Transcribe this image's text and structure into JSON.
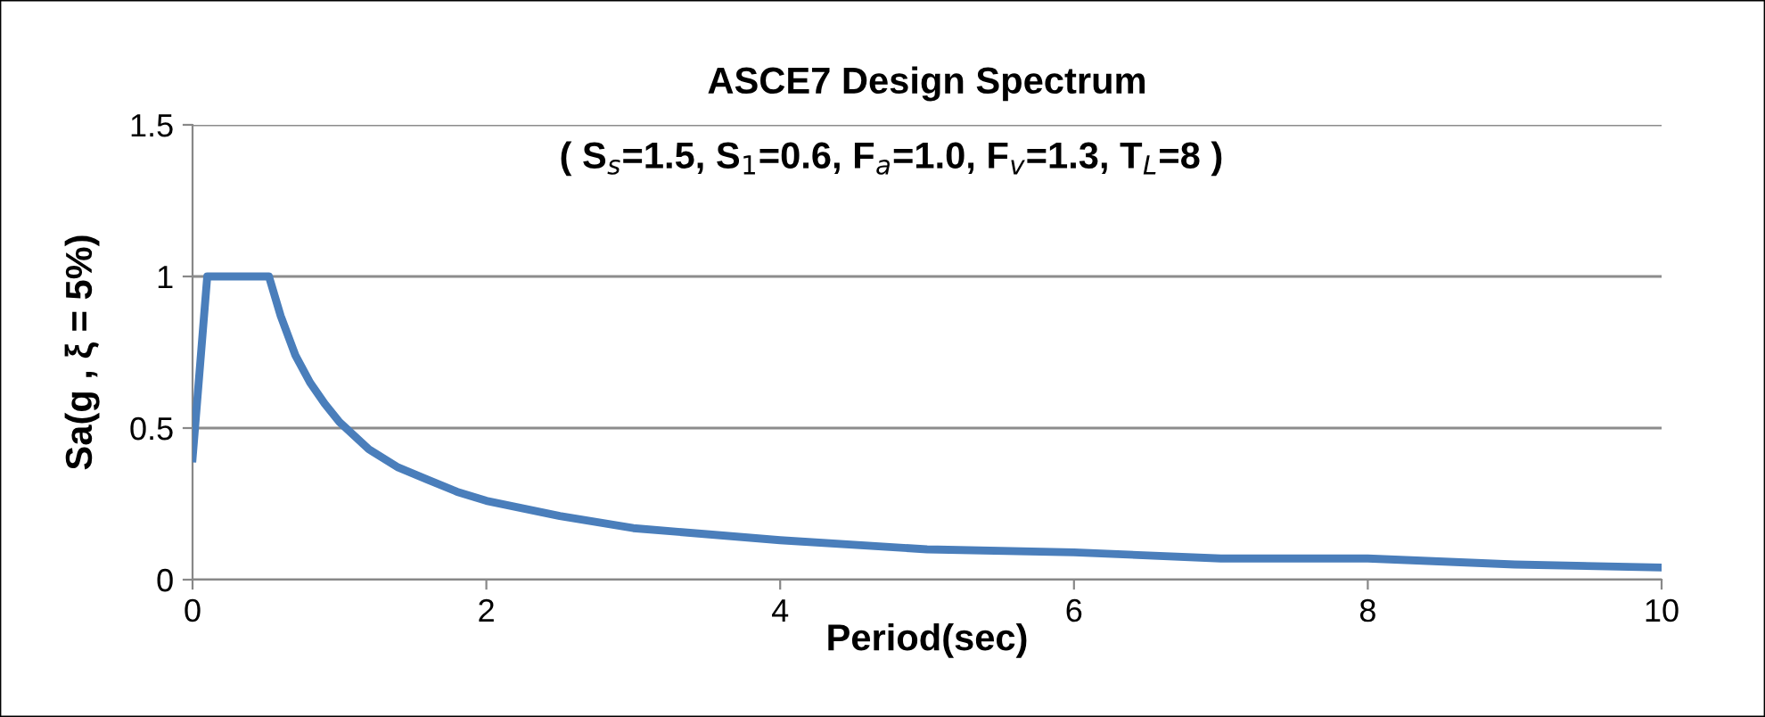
{
  "chart_data": {
    "type": "line",
    "title": "ASCE7 Design Spectrum",
    "subtitle": "( S$_{s}$=1.5, S$_{1}$=0.6, F$_{a}$=1.0, F$_{v}$=1.3, T$_{L}$=8 )",
    "xlabel": "Period(sec)",
    "ylabel": "Sa(g , ξ = 5%)",
    "series": [
      {
        "color": "#4a7ebb",
        "x": [
          0,
          0.1,
          0.52,
          0.6,
          0.7,
          0.8,
          0.9,
          1.0,
          1.2,
          1.4,
          1.6,
          1.8,
          2,
          2.5,
          3,
          3.5,
          4,
          5,
          6,
          7,
          8,
          9,
          10
        ],
        "values": [
          0.4,
          1.0,
          1.0,
          0.87,
          0.74,
          0.65,
          0.58,
          0.52,
          0.43,
          0.37,
          0.33,
          0.29,
          0.26,
          0.21,
          0.17,
          0.15,
          0.13,
          0.1,
          0.09,
          0.07,
          0.07,
          0.05,
          0.04
        ]
      }
    ],
    "xlim": [
      0,
      10
    ],
    "xticks": [
      0,
      2,
      4,
      6,
      8,
      10
    ],
    "ylim": [
      0,
      1.5
    ],
    "yticks": [
      0,
      0.5,
      1,
      1.5
    ],
    "grid": "y",
    "legend": false,
    "marker": "none",
    "line_style": "solid"
  }
}
